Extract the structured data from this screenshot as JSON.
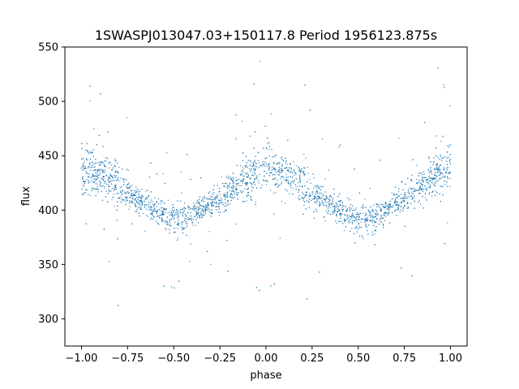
{
  "chart_data": {
    "type": "scatter",
    "title": "1SWASPJ013047.03+150117.8 Period 1956123.875s",
    "xlabel": "phase",
    "ylabel": "flux",
    "xlim": [
      -1.09,
      1.09
    ],
    "ylim": [
      275,
      550
    ],
    "grid": false,
    "legend": "none",
    "marker_color": "#1f77b4",
    "x_ticks": [
      -1.0,
      -0.75,
      -0.5,
      -0.25,
      0.0,
      0.25,
      0.5,
      0.75,
      1.0
    ],
    "x_tick_labels": [
      "−1.00",
      "−0.75",
      "−0.50",
      "−0.25",
      "0.00",
      "0.25",
      "0.50",
      "0.75",
      "1.00"
    ],
    "y_ticks": [
      300,
      350,
      400,
      450,
      500,
      550
    ],
    "y_tick_labels": [
      "300",
      "350",
      "400",
      "450",
      "500",
      "550"
    ],
    "series": [
      {
        "x": [
          -1.0,
          -0.95,
          -0.9,
          -0.85,
          -0.8,
          -0.75,
          -0.7,
          -0.65,
          -0.6,
          -0.55,
          -0.5,
          -0.45,
          -0.4,
          -0.35,
          -0.3,
          -0.25,
          -0.2,
          -0.15,
          -0.1,
          -0.05,
          0.0,
          0.05,
          0.1,
          0.15,
          0.2,
          0.25,
          0.3,
          0.35,
          0.4,
          0.45,
          0.5,
          0.55,
          0.6,
          0.65,
          0.7,
          0.75,
          0.8,
          0.85,
          0.9,
          0.95,
          1.0
        ],
        "y": [
          440,
          436,
          432,
          428,
          424,
          415,
          410,
          405,
          400,
          396,
          392,
          392,
          396,
          400,
          406,
          412,
          418,
          424,
          430,
          436,
          440,
          436,
          432,
          428,
          424,
          415,
          410,
          405,
          400,
          396,
          392,
          392,
          396,
          400,
          406,
          412,
          418,
          424,
          430,
          436,
          440
        ],
        "spread": [
          45,
          40,
          35,
          30,
          50,
          30,
          25,
          22,
          22,
          25,
          30,
          30,
          25,
          22,
          22,
          25,
          30,
          30,
          35,
          40,
          45,
          40,
          35,
          30,
          50,
          30,
          25,
          22,
          22,
          25,
          30,
          30,
          25,
          22,
          22,
          25,
          30,
          30,
          35,
          40,
          45
        ]
      }
    ]
  }
}
